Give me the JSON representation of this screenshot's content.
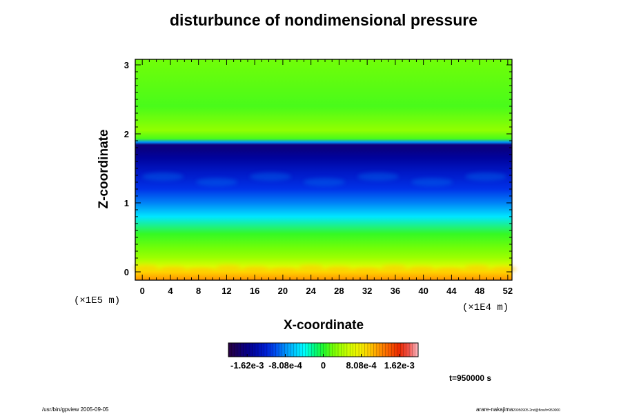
{
  "chart_data": {
    "type": "heatmap",
    "title": "disturbunce of nondimensional pressure",
    "xlabel": "X-coordinate",
    "ylabel": "Z-coordinate",
    "x_unit": "(×1E4 m)",
    "y_unit": "(×1E5 m)",
    "x_ticks": [
      "0",
      "4",
      "8",
      "12",
      "16",
      "20",
      "24",
      "28",
      "32",
      "36",
      "40",
      "44",
      "48",
      "52"
    ],
    "y_ticks": [
      "0",
      "1",
      "2",
      "3"
    ],
    "xlim": [
      -1,
      52.6
    ],
    "ylim": [
      -0.12,
      3.08
    ],
    "vertical_profile": {
      "z": [
        -0.12,
        0.0,
        0.08,
        0.2,
        0.35,
        0.55,
        0.8,
        1.0,
        1.2,
        1.45,
        1.65,
        1.78,
        1.84,
        1.88,
        1.93,
        2.05,
        2.4,
        3.08
      ],
      "value": [
        0.0012,
        0.00095,
        0.0006,
        0.00035,
        0.0002,
        5e-05,
        -0.0005,
        -0.00085,
        -0.0011,
        -0.0013,
        -0.0015,
        -0.00165,
        -0.0017,
        -0.0008,
        0.0001,
        0.0003,
        0.0001,
        0.0002
      ]
    },
    "colorbar": {
      "range": [
        -0.00202,
        0.00202
      ],
      "tick_values": [
        -0.00162,
        -0.000808,
        0,
        0.000808,
        0.00162
      ],
      "tick_labels": [
        "-1.62e-3",
        "-8.08e-4",
        "0",
        "8.08e-4",
        "1.62e-3"
      ]
    }
  },
  "time_label": "t=950000 s",
  "footer": {
    "left": "/usr/bin/gpview 2005-09-05",
    "right": "arare-nakajima",
    "right_sub": "20050905-2nd@flow/t=950000"
  }
}
